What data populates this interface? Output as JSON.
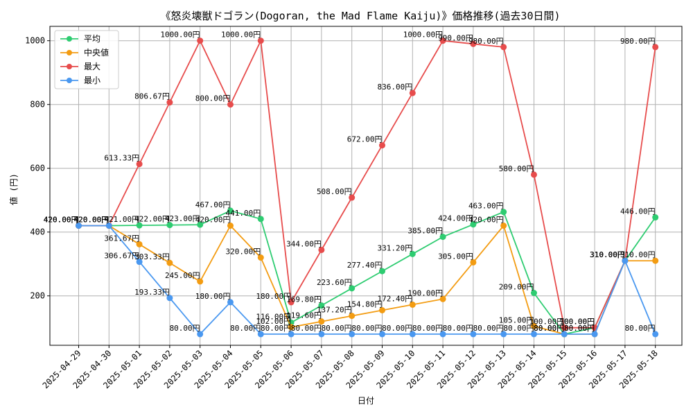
{
  "chart_data": {
    "type": "line",
    "title": "《怒炎壊獣ドゴラン(Dogoran, the Mad Flame Kaiju)》価格推移(過去30日間)",
    "xlabel": "日付",
    "ylabel": "値 (円)",
    "ylim": [
      45,
      1045
    ],
    "yticks": [
      200,
      400,
      600,
      800,
      1000
    ],
    "grid": true,
    "legend_position": "top-left",
    "value_suffix": "円",
    "categories": [
      "2025-04-29",
      "2025-04-30",
      "2025-05-01",
      "2025-05-02",
      "2025-05-03",
      "2025-05-04",
      "2025-05-05",
      "2025-05-06",
      "2025-05-07",
      "2025-05-08",
      "2025-05-09",
      "2025-05-10",
      "2025-05-11",
      "2025-05-12",
      "2025-05-13",
      "2025-05-14",
      "2025-05-15",
      "2025-05-16",
      "2025-05-17",
      "2025-05-18"
    ],
    "series": [
      {
        "name": "平均",
        "color": "#2ecc71",
        "values": [
          420,
          420,
          421,
          422,
          423,
          467,
          441,
          116,
          169.8,
          223.6,
          277.4,
          331.2,
          385,
          424,
          463,
          209,
          80,
          100,
          310,
          446
        ]
      },
      {
        "name": "中央値",
        "color": "#f39c12",
        "values": [
          420,
          420,
          361.67,
          303.33,
          245,
          420,
          320,
          102,
          119.6,
          137.2,
          154.8,
          172.4,
          190,
          305,
          420,
          105,
          80,
          80,
          310,
          310
        ]
      },
      {
        "name": "最大",
        "color": "#e74c4c",
        "values": [
          420,
          420,
          613.33,
          806.67,
          1000,
          800,
          1000,
          180,
          344,
          508,
          672,
          836,
          1000,
          990,
          980,
          580,
          100,
          100,
          310,
          980
        ]
      },
      {
        "name": "最小",
        "color": "#4a98f0",
        "values": [
          420,
          420,
          306.67,
          193.33,
          80,
          180,
          80,
          80,
          80,
          80,
          80,
          80,
          80,
          80,
          80,
          80,
          80,
          80,
          310,
          80
        ]
      }
    ]
  }
}
